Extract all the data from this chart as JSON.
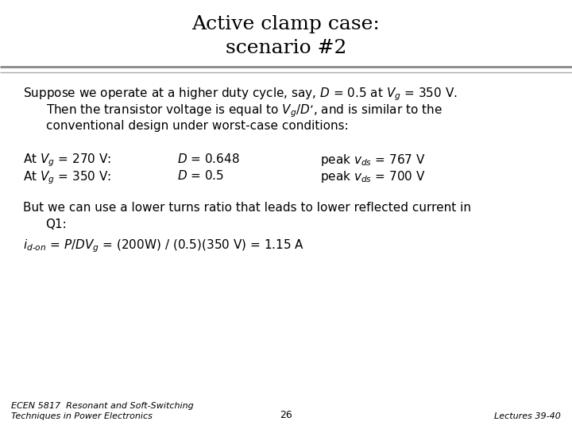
{
  "title_line1": "Active clamp case:",
  "title_line2": "scenario #2",
  "bg_color": "#ffffff",
  "title_font_size": 18,
  "body_font_size": 11,
  "small_font_size": 9.5,
  "footer_font_size": 8,
  "line1_col1": "At $V_g$ = 270 V:",
  "line1_col2": "$D$ = 0.648",
  "line1_col3": "peak $v_{ds}$ = 767 V",
  "line2_col1": "At $V_g$ = 350 V:",
  "line2_col2": "$D$ = 0.5",
  "line2_col3": "peak $v_{ds}$ = 700 V",
  "footer_left": "ECEN 5817  Resonant and Soft-Switching\nTechniques in Power Electronics",
  "footer_center": "26",
  "footer_right": "Lectures 39-40"
}
